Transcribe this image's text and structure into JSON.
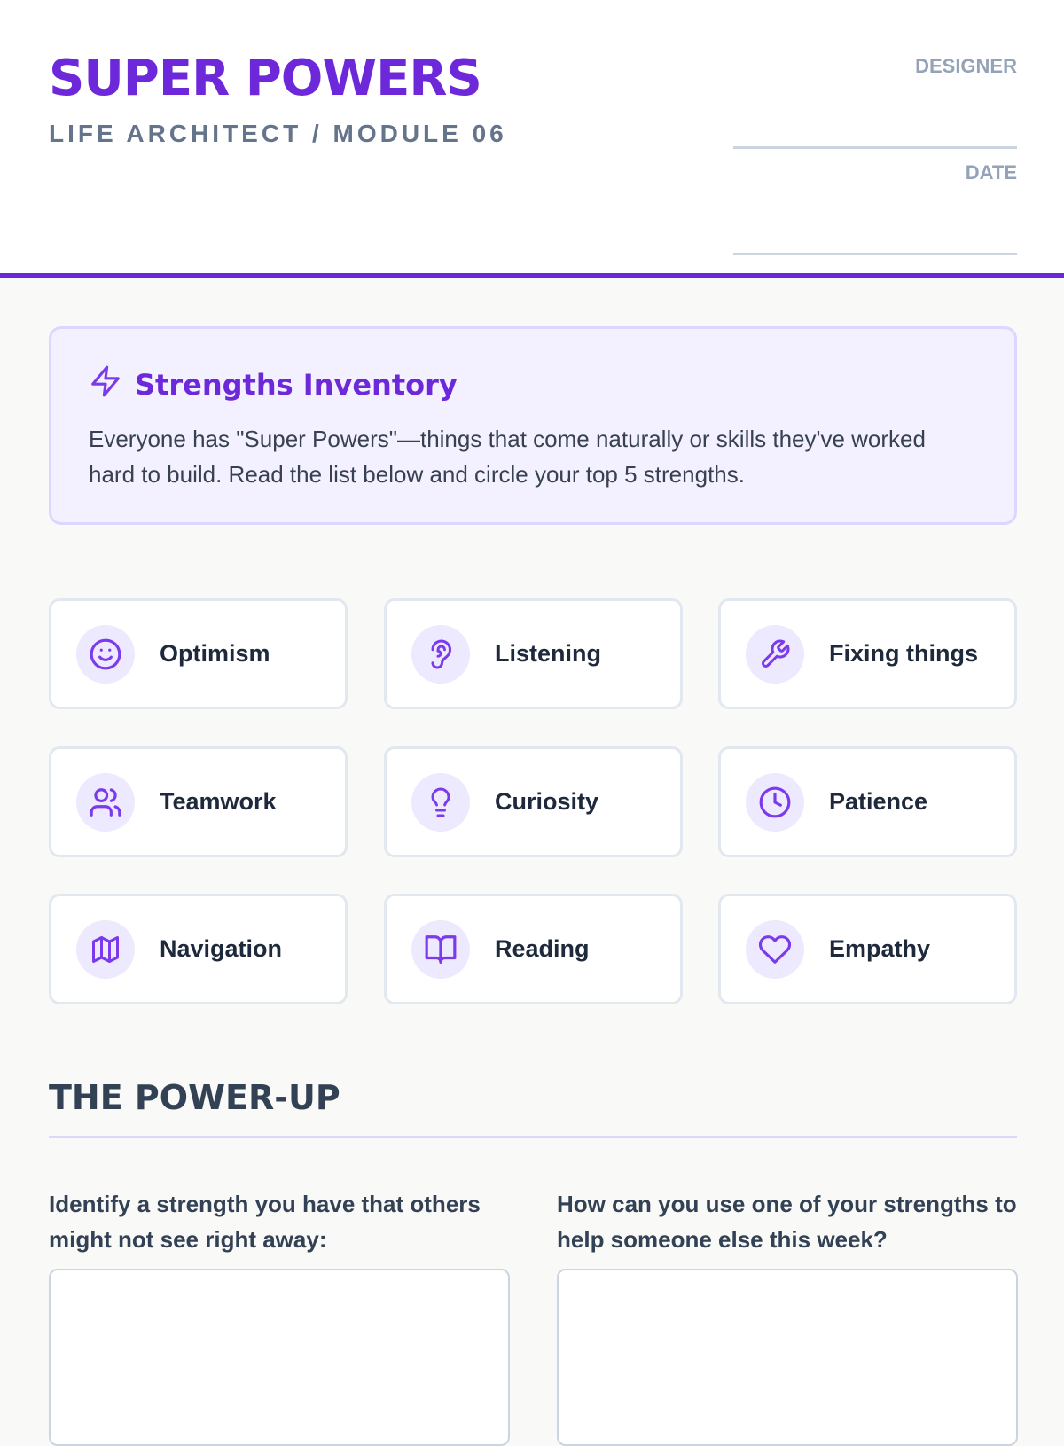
{
  "header": {
    "title": "SUPER POWERS",
    "subtitle": "LIFE ARCHITECT / MODULE 06",
    "designer_label": "DESIGNER",
    "date_label": "DATE"
  },
  "intro": {
    "icon": "lightning-icon",
    "heading": "Strengths Inventory",
    "text": "Everyone has \"Super Powers\"—things that come naturally or skills they've worked hard to build. Read the list below and circle your top 5 strengths."
  },
  "strengths": [
    {
      "label": "Optimism",
      "icon": "smile-icon"
    },
    {
      "label": "Listening",
      "icon": "ear-icon"
    },
    {
      "label": "Fixing things",
      "icon": "wrench-icon"
    },
    {
      "label": "Teamwork",
      "icon": "users-icon"
    },
    {
      "label": "Curiosity",
      "icon": "lightbulb-icon"
    },
    {
      "label": "Patience",
      "icon": "clock-icon"
    },
    {
      "label": "Navigation",
      "icon": "map-icon"
    },
    {
      "label": "Reading",
      "icon": "book-icon"
    },
    {
      "label": "Empathy",
      "icon": "heart-icon"
    }
  ],
  "powerup": {
    "heading": "THE POWER-UP",
    "q1": "Identify a strength you have that others might not see right away:",
    "q2": "How can you use one of your strengths to help someone else this week?"
  },
  "colors": {
    "accent": "#6d28d9",
    "icon_bg": "#ede9fe"
  }
}
